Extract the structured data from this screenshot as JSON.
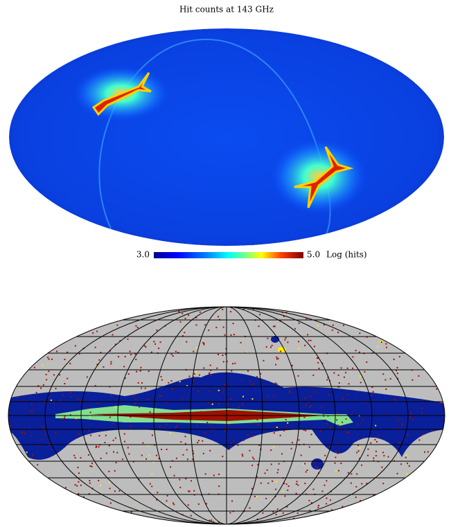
{
  "top_map": {
    "title": "Hit counts at 143 GHz",
    "colorbar": {
      "min_label": "3.0",
      "max_label": "5.0",
      "unit": "Log (hits)"
    }
  }
}
